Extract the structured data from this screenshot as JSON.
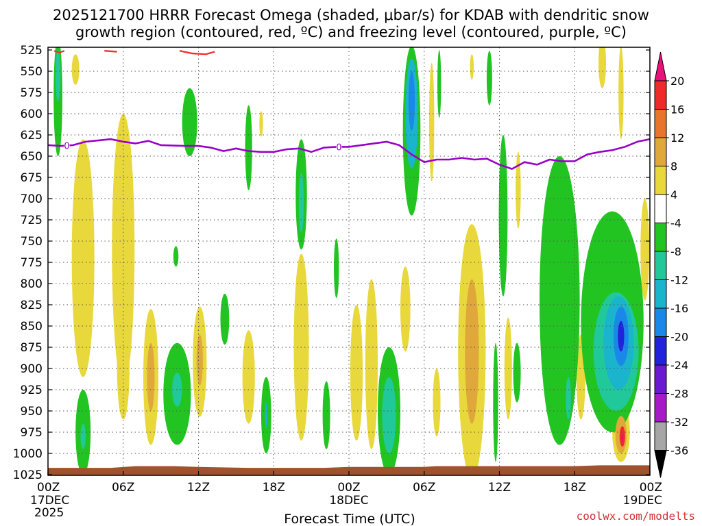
{
  "chart_data": {
    "type": "heatmap",
    "title_lines": [
      "2025121700 HRRR Forecast Omega (shaded, μbar/s) for KDAB with dendritic snow",
      "growth region (contoured, red, ºC) and freezing level (contoured, purple, ºC)"
    ],
    "xlabel": "Forecast Time (UTC)",
    "ylabel": "",
    "credit": "coolwx.com/modelts",
    "x_range_hours": [
      0,
      48
    ],
    "y_range_mb": [
      525,
      1025
    ],
    "y_ticks": [
      "525",
      "550",
      "575",
      "600",
      "625",
      "650",
      "675",
      "700",
      "725",
      "750",
      "775",
      "800",
      "825",
      "850",
      "875",
      "900",
      "925",
      "950",
      "975",
      "1000",
      "1025"
    ],
    "y_tick_values": [
      525,
      550,
      575,
      600,
      625,
      650,
      675,
      700,
      725,
      750,
      775,
      800,
      825,
      850,
      875,
      900,
      925,
      950,
      975,
      1000,
      1025
    ],
    "x_ticks": [
      {
        "hour": 0,
        "label": "00Z",
        "date": "17DEC",
        "year": "2025"
      },
      {
        "hour": 6,
        "label": "06Z"
      },
      {
        "hour": 12,
        "label": "12Z"
      },
      {
        "hour": 18,
        "label": "18Z"
      },
      {
        "hour": 24,
        "label": "00Z",
        "date": "18DEC"
      },
      {
        "hour": 30,
        "label": "06Z"
      },
      {
        "hour": 36,
        "label": "12Z"
      },
      {
        "hour": 42,
        "label": "18Z"
      },
      {
        "hour": 48,
        "label": "00Z",
        "date": "19DEC"
      }
    ],
    "colorbar": {
      "labels": [
        "20",
        "16",
        "12",
        "8",
        "4",
        "-4",
        "-8",
        "-12",
        "-16",
        "-20",
        "-24",
        "-28",
        "-32",
        "-36"
      ],
      "label_values": [
        20,
        16,
        12,
        8,
        4,
        -4,
        -8,
        -12,
        -16,
        -20,
        -24,
        -28,
        -32,
        -36
      ],
      "bins": [
        {
          "from": 20,
          "to": 24,
          "color": "#e8127a"
        },
        {
          "from": 16,
          "to": 20,
          "color": "#ee2a2a"
        },
        {
          "from": 12,
          "to": 16,
          "color": "#e8752b"
        },
        {
          "from": 8,
          "to": 12,
          "color": "#e0a83a"
        },
        {
          "from": 4,
          "to": 8,
          "color": "#e8d83c"
        },
        {
          "from": -4,
          "to": 4,
          "color": "#ffffff"
        },
        {
          "from": -8,
          "to": -4,
          "color": "#22c422"
        },
        {
          "from": -12,
          "to": -8,
          "color": "#20c89a"
        },
        {
          "from": -16,
          "to": -12,
          "color": "#1ab4cc"
        },
        {
          "from": -20,
          "to": -16,
          "color": "#1a88e8"
        },
        {
          "from": -24,
          "to": -20,
          "color": "#2222dd"
        },
        {
          "from": -28,
          "to": -24,
          "color": "#6a1ad0"
        },
        {
          "from": -32,
          "to": -28,
          "color": "#a81ac8"
        },
        {
          "from": -36,
          "to": -32,
          "color": "#a6a6a6"
        },
        {
          "from": -40,
          "to": -36,
          "color": "#000000"
        }
      ]
    },
    "freezing_level": {
      "label": "0",
      "color": "#9a00c8",
      "label_hours": [
        1.5,
        23.2
      ],
      "points": [
        [
          0,
          637
        ],
        [
          1,
          638
        ],
        [
          2,
          637
        ],
        [
          3,
          633
        ],
        [
          5,
          630
        ],
        [
          6,
          633
        ],
        [
          7,
          635
        ],
        [
          8,
          632
        ],
        [
          9,
          637
        ],
        [
          11,
          638
        ],
        [
          12,
          638
        ],
        [
          13,
          640
        ],
        [
          14,
          644
        ],
        [
          15,
          641
        ],
        [
          16,
          644
        ],
        [
          17,
          645
        ],
        [
          18,
          645
        ],
        [
          19,
          642
        ],
        [
          20,
          641
        ],
        [
          21,
          645
        ],
        [
          22,
          640
        ],
        [
          23,
          639
        ],
        [
          24,
          639
        ],
        [
          25,
          637
        ],
        [
          26,
          635
        ],
        [
          27,
          633
        ],
        [
          28,
          637
        ],
        [
          29,
          648
        ],
        [
          30,
          657
        ],
        [
          31,
          654
        ],
        [
          32,
          654
        ],
        [
          33,
          652
        ],
        [
          34,
          654
        ],
        [
          35,
          653
        ],
        [
          36,
          660
        ],
        [
          37,
          665
        ],
        [
          38,
          657
        ],
        [
          39,
          660
        ],
        [
          40,
          654
        ],
        [
          41,
          656
        ],
        [
          42,
          656
        ],
        [
          43,
          648
        ],
        [
          44,
          645
        ],
        [
          45,
          643
        ],
        [
          46,
          639
        ],
        [
          47,
          633
        ],
        [
          48,
          630
        ]
      ]
    },
    "dendritic_contour": {
      "color": "#ee3333",
      "segments": [
        [
          [
            0.5,
            526
          ],
          [
            0.9,
            528
          ],
          [
            1.3,
            526
          ]
        ],
        [
          [
            4.5,
            526
          ],
          [
            5.5,
            527
          ]
        ],
        [
          [
            10.5,
            526
          ],
          [
            11.5,
            529
          ],
          [
            12.6,
            530
          ],
          [
            13.3,
            527
          ]
        ]
      ]
    },
    "terrain": {
      "color": "#a0522d",
      "points": [
        [
          0,
          1017
        ],
        [
          5,
          1017
        ],
        [
          7,
          1015
        ],
        [
          10,
          1015
        ],
        [
          12,
          1016
        ],
        [
          16,
          1017
        ],
        [
          22,
          1017
        ],
        [
          24,
          1016
        ],
        [
          30,
          1016
        ],
        [
          31,
          1015
        ],
        [
          35,
          1015
        ],
        [
          42,
          1015
        ],
        [
          44,
          1014
        ],
        [
          48,
          1014
        ]
      ]
    },
    "omega_blobs": [
      {
        "value": -6,
        "hc": 0.8,
        "pc": 580,
        "rh": 0.35,
        "rp": 70
      },
      {
        "value": -10,
        "hc": 0.8,
        "pc": 555,
        "rh": 0.2,
        "rp": 30
      },
      {
        "value": 5,
        "hc": 2.2,
        "pc": 548,
        "rh": 0.3,
        "rp": 18
      },
      {
        "value": -6,
        "hc": 11.3,
        "pc": 610,
        "rh": 0.6,
        "rp": 40
      },
      {
        "value": -6,
        "hc": 16.0,
        "pc": 640,
        "rh": 0.28,
        "rp": 50
      },
      {
        "value": 5,
        "hc": 17.0,
        "pc": 612,
        "rh": 0.15,
        "rp": 15
      },
      {
        "value": -6,
        "hc": 20.2,
        "pc": 695,
        "rh": 0.45,
        "rp": 65
      },
      {
        "value": -10,
        "hc": 20.2,
        "pc": 705,
        "rh": 0.2,
        "rp": 35
      },
      {
        "value": -6,
        "hc": 29.0,
        "pc": 620,
        "rh": 0.7,
        "rp": 100
      },
      {
        "value": -12,
        "hc": 29.0,
        "pc": 600,
        "rh": 0.5,
        "rp": 65
      },
      {
        "value": -18,
        "hc": 29.0,
        "pc": 585,
        "rh": 0.25,
        "rp": 35
      },
      {
        "value": 5,
        "hc": 30.6,
        "pc": 610,
        "rh": 0.2,
        "rp": 70
      },
      {
        "value": -6,
        "hc": 31.2,
        "pc": 565,
        "rh": 0.15,
        "rp": 40
      },
      {
        "value": -6,
        "hc": 35.2,
        "pc": 558,
        "rh": 0.22,
        "rp": 32
      },
      {
        "value": 5,
        "hc": 33.8,
        "pc": 545,
        "rh": 0.15,
        "rp": 15
      },
      {
        "value": -6,
        "hc": 36.3,
        "pc": 720,
        "rh": 0.35,
        "rp": 95
      },
      {
        "value": 5,
        "hc": 37.5,
        "pc": 690,
        "rh": 0.2,
        "rp": 45
      },
      {
        "value": 5,
        "hc": 44.2,
        "pc": 540,
        "rh": 0.3,
        "rp": 30
      },
      {
        "value": 5,
        "hc": 45.7,
        "pc": 575,
        "rh": 0.2,
        "rp": 55
      },
      {
        "value": 5,
        "hc": 47.6,
        "pc": 760,
        "rh": 0.35,
        "rp": 60
      },
      {
        "value": 5,
        "hc": 2.8,
        "pc": 770,
        "rh": 0.9,
        "rp": 140
      },
      {
        "value": 5,
        "hc": 6.0,
        "pc": 760,
        "rh": 0.9,
        "rp": 160
      },
      {
        "value": 5,
        "hc": 6.0,
        "pc": 900,
        "rh": 0.5,
        "rp": 60
      },
      {
        "value": -6,
        "hc": 10.2,
        "pc": 768,
        "rh": 0.2,
        "rp": 12
      },
      {
        "value": 5,
        "hc": 8.2,
        "pc": 910,
        "rh": 0.6,
        "rp": 80
      },
      {
        "value": 10,
        "hc": 8.2,
        "pc": 910,
        "rh": 0.3,
        "rp": 40
      },
      {
        "value": -6,
        "hc": 10.3,
        "pc": 930,
        "rh": 1.1,
        "rp": 60
      },
      {
        "value": -10,
        "hc": 10.3,
        "pc": 925,
        "rh": 0.4,
        "rp": 20
      },
      {
        "value": 5,
        "hc": 12.1,
        "pc": 892,
        "rh": 0.55,
        "rp": 65
      },
      {
        "value": 10,
        "hc": 12.1,
        "pc": 890,
        "rh": 0.25,
        "rp": 30
      },
      {
        "value": -6,
        "hc": 2.8,
        "pc": 975,
        "rh": 0.6,
        "rp": 50
      },
      {
        "value": -10,
        "hc": 2.8,
        "pc": 980,
        "rh": 0.2,
        "rp": 15
      },
      {
        "value": -6,
        "hc": 14.1,
        "pc": 842,
        "rh": 0.35,
        "rp": 30
      },
      {
        "value": 5,
        "hc": 16.0,
        "pc": 910,
        "rh": 0.5,
        "rp": 55
      },
      {
        "value": -6,
        "hc": 17.4,
        "pc": 955,
        "rh": 0.4,
        "rp": 45
      },
      {
        "value": -12,
        "hc": 17.4,
        "pc": 955,
        "rh": 0.1,
        "rp": 15
      },
      {
        "value": 5,
        "hc": 20.2,
        "pc": 875,
        "rh": 0.6,
        "rp": 110
      },
      {
        "value": -6,
        "hc": 22.2,
        "pc": 955,
        "rh": 0.3,
        "rp": 40
      },
      {
        "value": -6,
        "hc": 23.0,
        "pc": 782,
        "rh": 0.2,
        "rp": 35
      },
      {
        "value": 5,
        "hc": 24.6,
        "pc": 905,
        "rh": 0.5,
        "rp": 80
      },
      {
        "value": 5,
        "hc": 25.8,
        "pc": 895,
        "rh": 0.5,
        "rp": 100
      },
      {
        "value": 5,
        "hc": 28.5,
        "pc": 830,
        "rh": 0.4,
        "rp": 50
      },
      {
        "value": -6,
        "hc": 27.2,
        "pc": 950,
        "rh": 0.9,
        "rp": 75
      },
      {
        "value": -10,
        "hc": 27.2,
        "pc": 955,
        "rh": 0.55,
        "rp": 45
      },
      {
        "value": 5,
        "hc": 31.0,
        "pc": 940,
        "rh": 0.3,
        "rp": 40
      },
      {
        "value": 5,
        "hc": 33.8,
        "pc": 760,
        "rh": 0.2,
        "rp": 25
      },
      {
        "value": 5,
        "hc": 33.8,
        "pc": 880,
        "rh": 1.1,
        "rp": 150
      },
      {
        "value": 10,
        "hc": 33.8,
        "pc": 880,
        "rh": 0.55,
        "rp": 85
      },
      {
        "value": -6,
        "hc": 35.7,
        "pc": 940,
        "rh": 0.2,
        "rp": 70
      },
      {
        "value": 5,
        "hc": 36.7,
        "pc": 900,
        "rh": 0.3,
        "rp": 60
      },
      {
        "value": -6,
        "hc": 37.4,
        "pc": 905,
        "rh": 0.3,
        "rp": 35
      },
      {
        "value": -6,
        "hc": 40.8,
        "pc": 820,
        "rh": 1.6,
        "rp": 170
      },
      {
        "value": -10,
        "hc": 41.5,
        "pc": 935,
        "rh": 0.2,
        "rp": 25
      },
      {
        "value": 5,
        "hc": 42.5,
        "pc": 910,
        "rh": 0.35,
        "rp": 50
      },
      {
        "value": -6,
        "hc": 45.0,
        "pc": 845,
        "rh": 2.5,
        "rp": 130
      },
      {
        "value": -10,
        "hc": 45.3,
        "pc": 880,
        "rh": 1.8,
        "rp": 70
      },
      {
        "value": -14,
        "hc": 45.5,
        "pc": 870,
        "rh": 1.2,
        "rp": 55
      },
      {
        "value": -18,
        "hc": 45.7,
        "pc": 862,
        "rh": 0.6,
        "rp": 35
      },
      {
        "value": -22,
        "hc": 45.7,
        "pc": 862,
        "rh": 0.25,
        "rp": 18
      },
      {
        "value": 5,
        "hc": 45.7,
        "pc": 975,
        "rh": 0.7,
        "rp": 35
      },
      {
        "value": 10,
        "hc": 45.7,
        "pc": 978,
        "rh": 0.45,
        "rp": 22
      },
      {
        "value": 17,
        "hc": 45.8,
        "pc": 980,
        "rh": 0.22,
        "rp": 12
      },
      {
        "value": 22,
        "hc": 45.8,
        "pc": 982,
        "rh": 0.08,
        "rp": 4
      }
    ]
  }
}
